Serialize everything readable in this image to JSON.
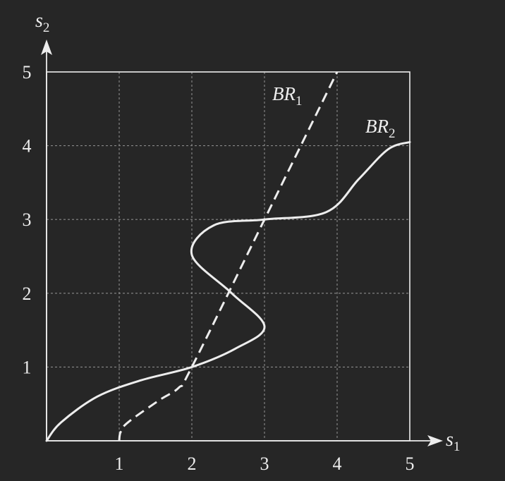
{
  "chart_data": {
    "type": "line",
    "xlabel": {
      "base": "s",
      "sub": "1"
    },
    "ylabel": {
      "base": "s",
      "sub": "2"
    },
    "xlim": [
      0,
      5
    ],
    "ylim": [
      0,
      5
    ],
    "x_ticks": [
      "1",
      "2",
      "3",
      "4",
      "5"
    ],
    "y_ticks": [
      "1",
      "2",
      "3",
      "4",
      "5"
    ],
    "grid": true,
    "series": [
      {
        "name": {
          "base": "BR",
          "sub": "1"
        },
        "style": "dashed",
        "points": [
          [
            1.0,
            0.0
          ],
          [
            1.02,
            0.12
          ],
          [
            1.12,
            0.25
          ],
          [
            1.55,
            0.55
          ],
          [
            1.82,
            0.72
          ],
          [
            2.0,
            1.0
          ],
          [
            3.0,
            3.0
          ],
          [
            4.0,
            5.0
          ]
        ]
      },
      {
        "name": {
          "base": "BR",
          "sub": "2"
        },
        "style": "solid",
        "points": [
          [
            0.0,
            0.0
          ],
          [
            0.2,
            0.25
          ],
          [
            0.7,
            0.6
          ],
          [
            1.3,
            0.82
          ],
          [
            2.0,
            1.0
          ],
          [
            2.6,
            1.25
          ],
          [
            3.0,
            1.55
          ],
          [
            2.55,
            2.0
          ],
          [
            2.0,
            2.52
          ],
          [
            2.3,
            2.92
          ],
          [
            3.0,
            3.0
          ],
          [
            3.85,
            3.1
          ],
          [
            4.3,
            3.55
          ],
          [
            4.7,
            3.95
          ],
          [
            5.0,
            4.05
          ]
        ]
      }
    ]
  },
  "colors": {
    "background": "#262626",
    "ink": "#ededed",
    "grid": "#8a8a8a"
  }
}
